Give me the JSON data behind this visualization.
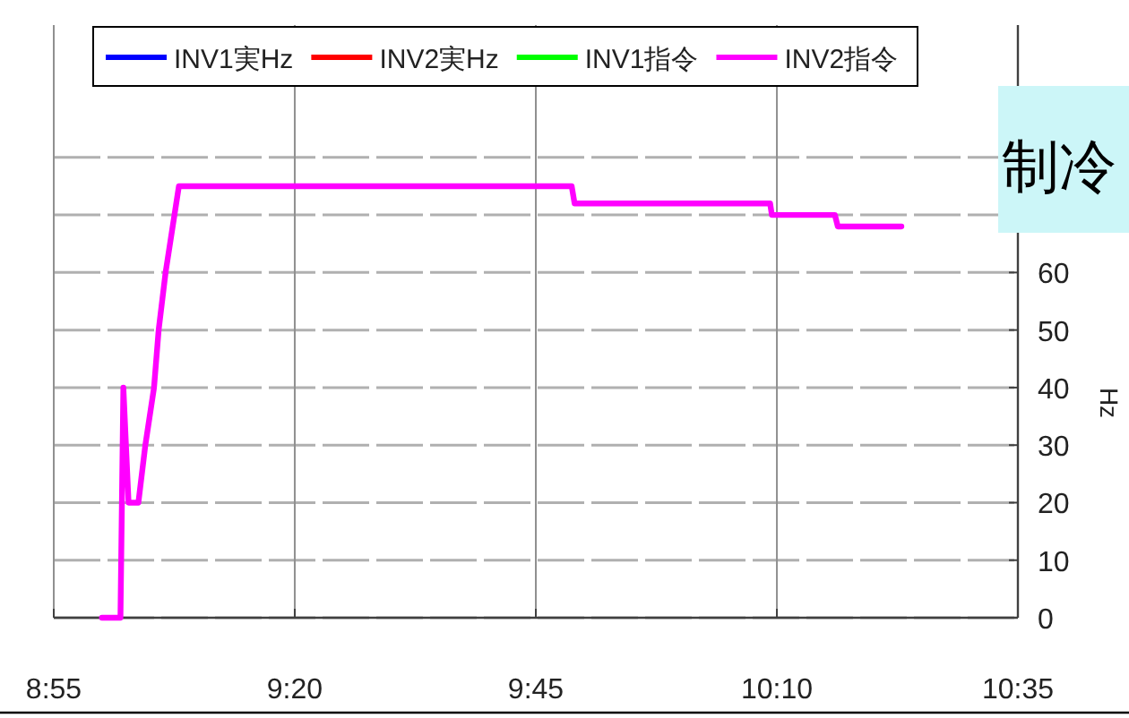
{
  "chart_data": {
    "type": "line",
    "ylabel": "Hz",
    "annotations": [
      "制冷"
    ],
    "x": [
      9.0,
      9.032,
      9.037,
      9.046,
      9.063,
      9.075,
      9.09,
      9.098,
      9.11,
      9.133,
      9.812,
      9.817,
      10.155,
      10.158,
      10.267,
      10.272,
      10.382
    ],
    "series": [
      {
        "name": "INV1実Hz",
        "color": "#0000ff",
        "values": [
          null,
          null,
          null,
          null,
          null,
          null,
          null,
          null,
          null,
          null,
          null,
          null,
          null,
          null,
          null,
          null,
          null
        ]
      },
      {
        "name": "INV2実Hz",
        "color": "#ff0000",
        "values": [
          null,
          null,
          null,
          null,
          null,
          null,
          null,
          null,
          null,
          null,
          null,
          null,
          null,
          null,
          null,
          null,
          null
        ]
      },
      {
        "name": "INV1指令",
        "color": "#00ff00",
        "values": [
          null,
          null,
          null,
          null,
          null,
          null,
          null,
          null,
          null,
          null,
          null,
          null,
          null,
          null,
          null,
          null,
          null
        ]
      },
      {
        "name": "INV2指令",
        "color": "#ff00ff",
        "values": [
          0,
          0,
          40,
          20,
          20,
          30,
          40,
          50,
          60,
          75,
          75,
          72,
          72,
          70,
          70,
          68,
          68
        ]
      }
    ],
    "xlim": [
      8.9167,
      10.5833
    ],
    "xticks": [
      {
        "value": 8.9167,
        "label": "8:55"
      },
      {
        "value": 9.3333,
        "label": "9:20"
      },
      {
        "value": 9.75,
        "label": "9:45"
      },
      {
        "value": 10.1667,
        "label": "10:10"
      },
      {
        "value": 10.5833,
        "label": "10:35"
      }
    ],
    "ylim": [
      0,
      103
    ],
    "yticks": [
      0,
      10,
      20,
      30,
      40,
      50,
      60,
      {
        "value": 70,
        "label": null
      },
      {
        "value": 80,
        "label": null
      }
    ],
    "grid": true,
    "legend": "top",
    "marker": "none",
    "line_style": "solid"
  }
}
